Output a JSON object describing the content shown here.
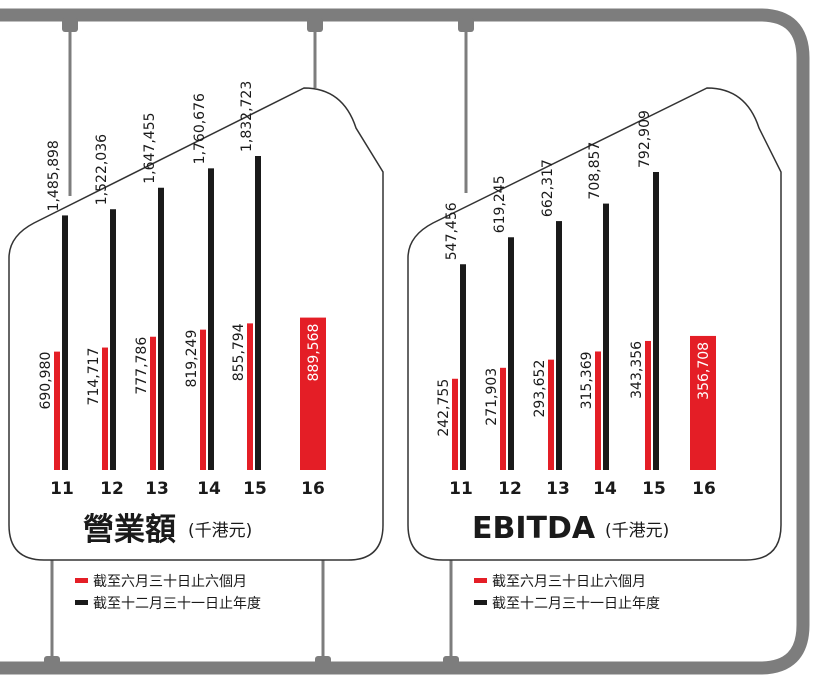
{
  "colors": {
    "first_half": "#e41e26",
    "full_year": "#1a1a1a",
    "frame": "#7d7d7d",
    "card_border": "#333333"
  },
  "legend": {
    "first_half_label": "截至六月三十日止六個月",
    "full_year_label": "截至十二月三十一日止年度"
  },
  "chart_data": [
    {
      "type": "bar",
      "title": "營業額",
      "unit": "(千港元)",
      "categories": [
        "11",
        "12",
        "13",
        "14",
        "15",
        "16"
      ],
      "series": [
        {
          "name": "截至六月三十日止六個月",
          "values": [
            690980,
            714717,
            777786,
            819249,
            855794,
            889568
          ]
        },
        {
          "name": "截至十二月三十一日止年度",
          "values": [
            1485898,
            1522036,
            1647455,
            1760676,
            1832723,
            null
          ]
        }
      ],
      "value_labels": {
        "first_half": [
          "690,980",
          "714,717",
          "777,786",
          "819,249",
          "855,794",
          "889,568"
        ],
        "full_year": [
          "1,485,898",
          "1,522,036",
          "1,647,455",
          "1,760,676",
          "1,832,723",
          ""
        ]
      },
      "highlight_category": "16",
      "ylim": [
        0,
        1900000
      ]
    },
    {
      "type": "bar",
      "title": "EBITDA",
      "unit": "(千港元)",
      "categories": [
        "11",
        "12",
        "13",
        "14",
        "15",
        "16"
      ],
      "series": [
        {
          "name": "截至六月三十日止六個月",
          "values": [
            242755,
            271903,
            293652,
            315369,
            343356,
            356708
          ]
        },
        {
          "name": "截至十二月三十一日止年度",
          "values": [
            547456,
            619245,
            662317,
            708857,
            792909,
            null
          ]
        }
      ],
      "value_labels": {
        "first_half": [
          "242,755",
          "271,903",
          "293,652",
          "315,369",
          "343,356",
          "356,708"
        ],
        "full_year": [
          "547,456",
          "619,245",
          "662,317",
          "708,857",
          "792,909",
          ""
        ]
      },
      "highlight_category": "16",
      "ylim": [
        0,
        820000
      ]
    }
  ]
}
